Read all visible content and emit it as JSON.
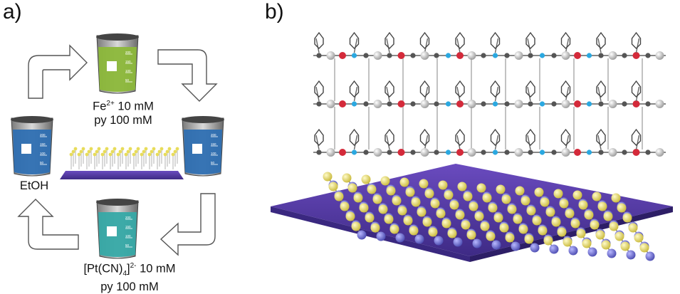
{
  "panel_a": {
    "label": "a)",
    "beakers": [
      {
        "role": "fe-solution",
        "color": "#8cb83a",
        "line1_base": "Fe",
        "line1_sup": "2+",
        "line1_rest": " 10 mM",
        "line2": "py 100 mM"
      },
      {
        "role": "ethanol-left",
        "color": "#2e6fb2",
        "line1": "EtOH"
      },
      {
        "role": "ethanol-right",
        "color": "#2e6fb2"
      },
      {
        "role": "pt-solution",
        "color": "#36a9a6",
        "line1_a": "[Pt(CN)",
        "line1_sub": "4",
        "line1_b": "]",
        "line1_sup": "2-",
        "line1_rest": " 10 mM",
        "line2": "py 100 mM"
      }
    ],
    "graduations": [
      "200",
      "150",
      "100",
      "50"
    ]
  },
  "panel_b": {
    "label": "b)"
  },
  "colors": {
    "substrate": "#5b3fa6",
    "sulfur": "#e8dc5a",
    "gold": "#6a6ad0",
    "carbon": "#555555",
    "nitrogen": "#2aa8e0",
    "iron": "#d42a3a",
    "platinum": "#c8c8c8"
  }
}
